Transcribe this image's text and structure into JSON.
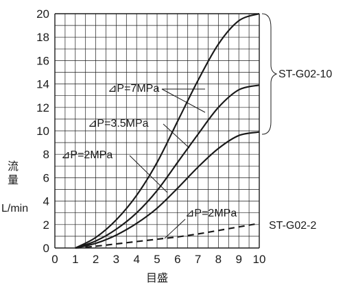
{
  "chart_data": {
    "type": "line",
    "title": "",
    "xlabel": "目盛",
    "ylabel_lines": [
      "流",
      "量"
    ],
    "yunit": "L/min",
    "xlim": [
      0,
      10
    ],
    "ylim": [
      0,
      20
    ],
    "xticks": [
      "0",
      "1",
      "2",
      "3",
      "4",
      "5",
      "6",
      "7",
      "8",
      "9",
      "10"
    ],
    "yticks": [
      "0",
      "2",
      "4",
      "6",
      "8",
      "10",
      "12",
      "14",
      "16",
      "18",
      "20"
    ],
    "grid": true,
    "series": [
      {
        "name": "⊿P=7MPa",
        "model": "ST-G02-10",
        "style": "solid",
        "x": [
          1,
          2,
          3,
          4,
          5,
          6,
          7,
          8,
          9,
          10
        ],
        "y": [
          0,
          0.9,
          2.4,
          4.5,
          7.3,
          10.8,
          14.3,
          17.4,
          19.4,
          20.0
        ]
      },
      {
        "name": "⊿P=3.5MPa",
        "model": "ST-G02-10",
        "style": "solid",
        "x": [
          1,
          2,
          3,
          4,
          5,
          6,
          7,
          8,
          9,
          10
        ],
        "y": [
          0,
          0.6,
          1.6,
          3.0,
          4.9,
          7.3,
          9.7,
          12.0,
          13.5,
          13.9
        ]
      },
      {
        "name": "⊿P=2MPa",
        "model": "ST-G02-10",
        "style": "solid",
        "x": [
          1,
          2,
          3,
          4,
          5,
          6,
          7,
          8,
          9,
          10
        ],
        "y": [
          0,
          0.4,
          1.1,
          2.1,
          3.4,
          5.1,
          6.9,
          8.5,
          9.6,
          9.9
        ]
      },
      {
        "name": "⊿P=2MPa",
        "model": "ST-G02-2",
        "style": "dashed",
        "x": [
          1,
          2,
          3,
          4,
          5,
          6,
          7,
          8,
          9,
          10
        ],
        "y": [
          0,
          0.15,
          0.35,
          0.55,
          0.75,
          0.95,
          1.2,
          1.5,
          1.8,
          2.1
        ]
      }
    ],
    "annotations": {
      "p7": "⊿P=7MPa",
      "p35": "⊿P=3.5MPa",
      "p2": "⊿P=2MPa",
      "p2s": "⊿P=2MPa",
      "g10": "ST-G02-10",
      "g2": "ST-G02-2"
    }
  }
}
